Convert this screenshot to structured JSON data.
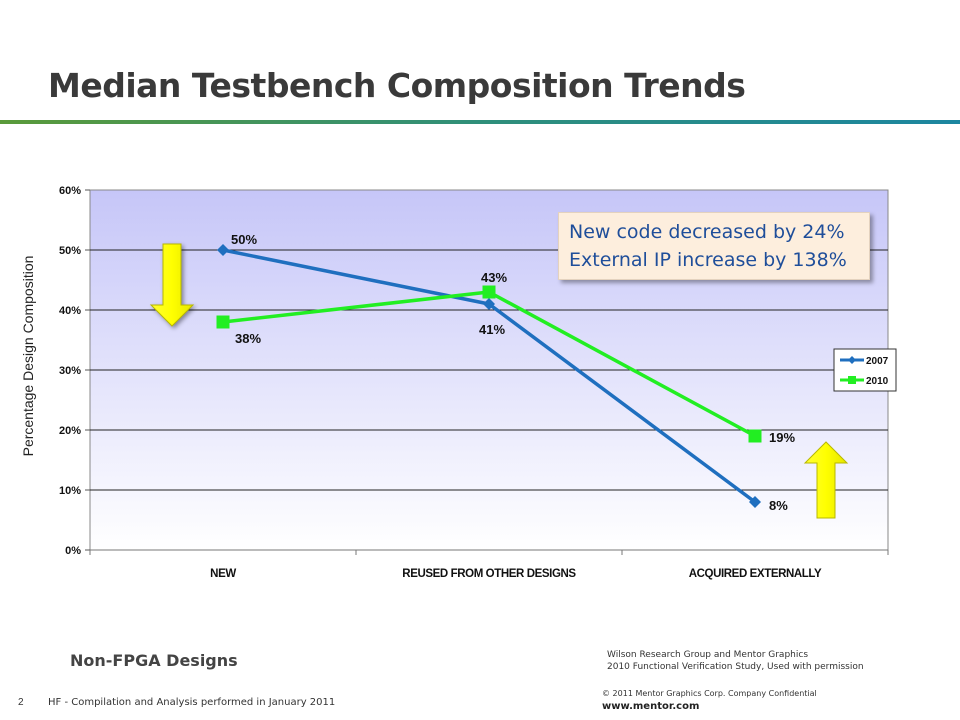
{
  "slide": {
    "title": "Median Testbench Composition Trends",
    "subtitle_label": "Non-FPGA Designs",
    "source_line1": "Wilson Research Group and Mentor Graphics",
    "source_line2": "2010 Functional Verification Study,  Used with permission",
    "page_number": "2",
    "footnote": "HF - Compilation and Analysis performed in January 2011",
    "copyright": "© 2011 Mentor Graphics Corp. Company Confidential",
    "website": "www.mentor.com"
  },
  "callout": {
    "line1": "New code decreased by 24%",
    "line2": "External IP increase by 138%"
  },
  "colors": {
    "series_2007": "#1f6fbf",
    "series_2010": "#22ee22",
    "arrow_fill": "#ffff00",
    "callout_text": "#1f4e9a"
  },
  "chart_data": {
    "type": "line",
    "title": "",
    "xlabel": "",
    "ylabel": "Percentage Design Composition",
    "categories": [
      "NEW",
      "REUSED FROM OTHER DESIGNS",
      "ACQUIRED EXTERNALLY"
    ],
    "yticks": [
      "0%",
      "10%",
      "20%",
      "30%",
      "40%",
      "50%",
      "60%"
    ],
    "ylim": [
      0,
      60
    ],
    "grid": true,
    "legend": "right",
    "series": [
      {
        "name": "2007",
        "values": [
          50,
          41,
          8
        ],
        "labels": [
          "50%",
          "41%",
          "8%"
        ],
        "marker": "diamond"
      },
      {
        "name": "2010",
        "values": [
          38,
          43,
          19
        ],
        "labels": [
          "38%",
          "43%",
          "19%"
        ],
        "marker": "square"
      }
    ]
  }
}
